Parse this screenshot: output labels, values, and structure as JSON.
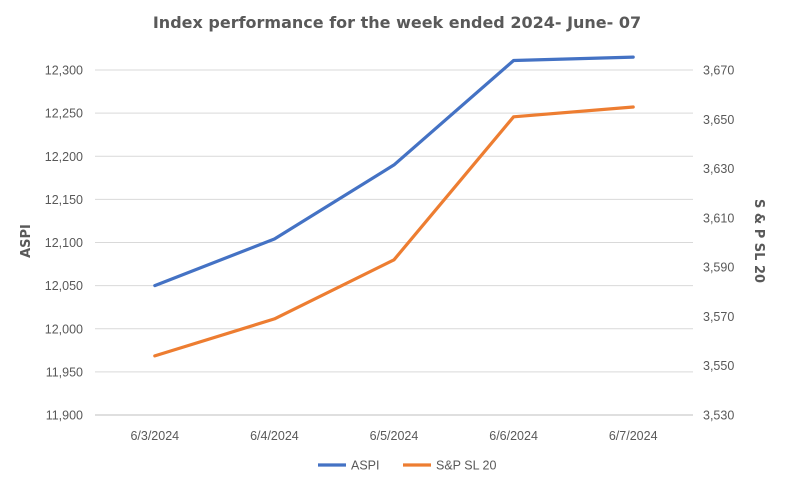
{
  "chart_data": {
    "type": "line",
    "title": "Index performance for the week ended 2024- June- 07",
    "xlabel": "",
    "categories": [
      "6/3/2024",
      "6/4/2024",
      "6/5/2024",
      "6/6/2024",
      "6/7/2024"
    ],
    "y_left": {
      "label": "ASPI",
      "ylim": [
        11900,
        12300
      ],
      "ticks": [
        "11,900",
        "11,950",
        "12,000",
        "12,050",
        "12,100",
        "12,150",
        "12,200",
        "12,250",
        "12,300"
      ],
      "tick_values": [
        11900,
        11950,
        12000,
        12050,
        12100,
        12150,
        12200,
        12250,
        12300
      ]
    },
    "y_right": {
      "label": "S & P SL 20",
      "ylim": [
        3530,
        3670
      ],
      "ticks": [
        "3,530",
        "3,550",
        "3,570",
        "3,590",
        "3,610",
        "3,630",
        "3,650",
        "3,670"
      ],
      "tick_values": [
        3530,
        3550,
        3570,
        3590,
        3610,
        3630,
        3650,
        3670
      ]
    },
    "series": [
      {
        "name": "ASPI",
        "axis": "left",
        "color": "#4472C4",
        "values": [
          12050,
          12104,
          12190,
          12311,
          12315
        ]
      },
      {
        "name": "S&P SL 20",
        "axis": "right",
        "color": "#ED7D31",
        "values": [
          3554,
          3569,
          3593,
          3651,
          3655
        ]
      }
    ],
    "grid": true,
    "legend": "bottom"
  }
}
